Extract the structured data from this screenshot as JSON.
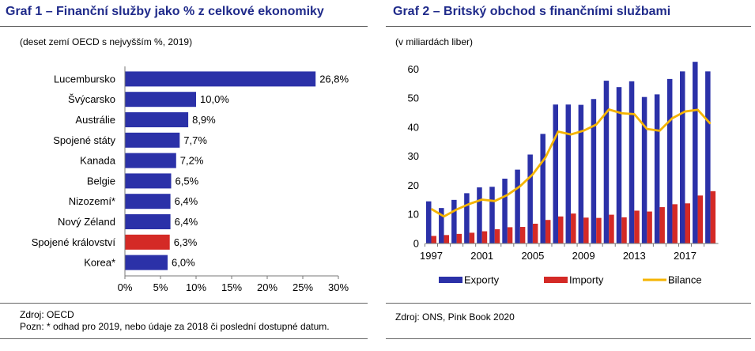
{
  "chart_data": [
    {
      "type": "bar",
      "orientation": "horizontal",
      "title": "Graf 1 – Finanční služby jako % z celkové ekonomiky",
      "subtitle": "(deset zemí OECD s nejvyšším %, 2019)",
      "categories": [
        "Lucembursko",
        "Švýcarsko",
        "Austrálie",
        "Spojené státy",
        "Kanada",
        "Belgie",
        "Nizozemí*",
        "Nový Zéland",
        "Spojené království",
        "Korea*"
      ],
      "values": [
        26.8,
        10.0,
        8.9,
        7.7,
        7.2,
        6.5,
        6.4,
        6.4,
        6.3,
        6.0
      ],
      "value_labels": [
        "26,8%",
        "10,0%",
        "8,9%",
        "7,7%",
        "7,2%",
        "6,5%",
        "6,4%",
        "6,4%",
        "6,3%",
        "6,0%"
      ],
      "xlim": [
        0,
        30
      ],
      "x_ticks": [
        0,
        5,
        10,
        15,
        20,
        25,
        30
      ],
      "x_tick_labels": [
        "0%",
        "5%",
        "10%",
        "15%",
        "20%",
        "25%",
        "30%"
      ],
      "grid": false,
      "colors": {
        "default": "#2b31a8",
        "highlight": "#d42a26"
      },
      "highlight_category": "Spojené království",
      "source": "Zdroj: OECD",
      "note": "Pozn: * odhad pro 2019, nebo údaje za 2018 či poslední dostupné datum."
    },
    {
      "type": "bar+line",
      "title": "Graf 2 – Britský obchod s finančními službami",
      "subtitle": "(v miliardách liber)",
      "x": [
        1997,
        1998,
        1999,
        2000,
        2001,
        2002,
        2003,
        2004,
        2005,
        2006,
        2007,
        2008,
        2009,
        2010,
        2011,
        2012,
        2013,
        2014,
        2015,
        2016,
        2017,
        2018,
        2019
      ],
      "x_tick_labels": [
        "1997",
        "2001",
        "2005",
        "2009",
        "2013",
        "2017"
      ],
      "ylim": [
        0,
        65
      ],
      "y_ticks": [
        0,
        10,
        20,
        30,
        40,
        50,
        60
      ],
      "grid": false,
      "series": [
        {
          "name": "Exporty",
          "type": "bar",
          "color": "#2b31a8",
          "values": [
            14.5,
            12.2,
            15.0,
            17.3,
            19.3,
            19.5,
            22.3,
            25.4,
            30.6,
            37.7,
            47.8,
            47.8,
            47.7,
            49.7,
            56.0,
            53.8,
            55.8,
            50.4,
            51.3,
            56.6,
            59.2,
            62.5,
            59.2
          ]
        },
        {
          "name": "Importy",
          "type": "bar",
          "color": "#d42a26",
          "values": [
            2.6,
            2.9,
            3.3,
            3.7,
            4.2,
            4.9,
            5.6,
            5.7,
            6.8,
            8.1,
            9.3,
            10.3,
            8.9,
            8.8,
            9.9,
            9.0,
            11.3,
            11.0,
            12.5,
            13.5,
            13.8,
            16.5,
            18.0
          ]
        },
        {
          "name": "Bilance",
          "type": "line",
          "color": "#f5b400",
          "values": [
            11.9,
            9.3,
            11.7,
            13.6,
            15.1,
            14.6,
            16.7,
            19.7,
            23.8,
            29.6,
            38.5,
            37.5,
            38.8,
            40.9,
            46.1,
            44.8,
            44.5,
            39.4,
            38.8,
            43.1,
            45.4,
            46.0,
            41.2
          ]
        }
      ],
      "legend": [
        "Exporty",
        "Importy",
        "Bilance"
      ],
      "legend_position": "bottom",
      "source": "Zdroj: ONS, Pink Book 2020"
    }
  ]
}
